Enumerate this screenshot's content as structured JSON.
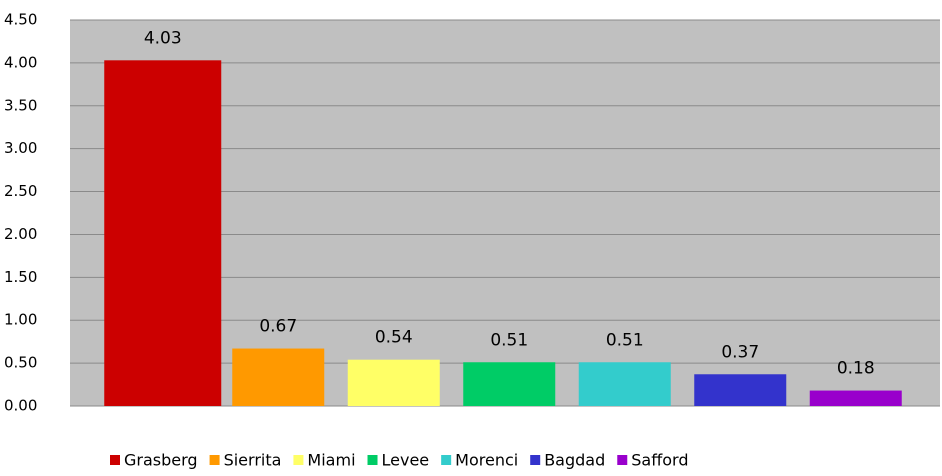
{
  "chart_data": {
    "type": "bar",
    "categories": [
      "Grasberg",
      "Sierrita",
      "Miami",
      "Levee",
      "Morenci",
      "Bagdad",
      "Safford"
    ],
    "series": [
      {
        "name": "Grasberg",
        "color": "#cc0000",
        "values": [
          4.03,
          null,
          null,
          null,
          null,
          null,
          null
        ]
      },
      {
        "name": "Sierrita",
        "color": "#ff9900",
        "values": [
          null,
          0.67,
          null,
          null,
          null,
          null,
          null
        ]
      },
      {
        "name": "Miami",
        "color": "#ffff66",
        "values": [
          null,
          null,
          0.54,
          null,
          null,
          null,
          null
        ]
      },
      {
        "name": "Levee",
        "color": "#00cc66",
        "values": [
          null,
          null,
          null,
          0.51,
          null,
          null,
          null
        ]
      },
      {
        "name": "Morenci",
        "color": "#33cccc",
        "values": [
          null,
          null,
          null,
          null,
          0.51,
          null,
          null
        ]
      },
      {
        "name": "Bagdad",
        "color": "#3333cc",
        "values": [
          null,
          null,
          null,
          null,
          null,
          0.37,
          null
        ]
      },
      {
        "name": "Safford",
        "color": "#9900cc",
        "values": [
          null,
          null,
          null,
          null,
          null,
          null,
          0.18
        ]
      }
    ],
    "ylim": [
      0,
      4.5
    ],
    "yticks": [
      {
        "value": 0,
        "label": "0.00"
      },
      {
        "value": 0.5,
        "label": "0.50"
      },
      {
        "value": 1,
        "label": "1.00"
      },
      {
        "value": 1.5,
        "label": "1.50"
      },
      {
        "value": 2,
        "label": "2.00"
      },
      {
        "value": 2.5,
        "label": "2.50"
      },
      {
        "value": 3,
        "label": "3.00"
      },
      {
        "value": 3.5,
        "label": "3.50"
      },
      {
        "value": 4,
        "label": "4.00"
      },
      {
        "value": 4.5,
        "label": "4.50"
      }
    ],
    "grid": true,
    "legend": "bottom"
  }
}
